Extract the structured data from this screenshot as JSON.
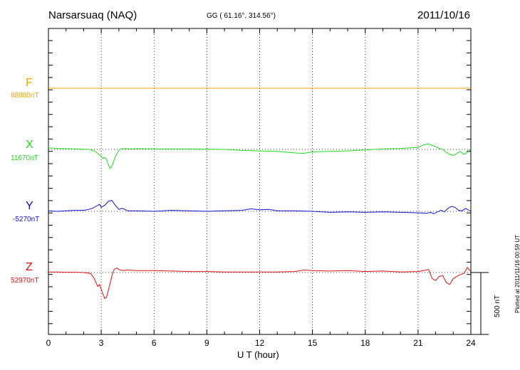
{
  "header": {
    "station": "Narsarsuaq (NAQ)",
    "coords": "GG ( 61.16°, 314.56°)",
    "date": "2011/10/16"
  },
  "components": [
    {
      "name": "F",
      "baseline": "88880nT",
      "color": "#f5a300"
    },
    {
      "name": "X",
      "baseline": "11670nT",
      "color": "#22d822"
    },
    {
      "name": "Y",
      "baseline": "-5270nT",
      "color": "#1010cc"
    },
    {
      "name": "Z",
      "baseline": "52970nT",
      "color": "#e01010"
    }
  ],
  "scale_label": "500 nT",
  "plotted_note": "Plotted at 2011/11/16 00:59 UT",
  "chart_data": {
    "type": "line",
    "title": "Narsarsuaq (NAQ)",
    "xlabel": "U T (hour)",
    "ylabel": "",
    "xlim": [
      0,
      24
    ],
    "xticks": [
      "0",
      "3",
      "6",
      "9",
      "12",
      "15",
      "18",
      "21",
      "24"
    ],
    "scale_nT": 500,
    "grid": "dotted vertical at 3-hour intervals, dotted horizontal baselines",
    "series": [
      {
        "name": "F",
        "baseline_nT": 88880,
        "color": "#f5a300",
        "x": [
          0,
          24
        ],
        "y": [
          0,
          0
        ]
      },
      {
        "name": "X",
        "baseline_nT": 11670,
        "color": "#22d822",
        "x": [
          0,
          0.3,
          0.6,
          1,
          1.5,
          2,
          2.3,
          2.6,
          2.8,
          3.0,
          3.1,
          3.2,
          3.3,
          3.4,
          3.5,
          3.6,
          3.7,
          3.8,
          3.9,
          4.0,
          4.1,
          4.3,
          4.6,
          5,
          6,
          7,
          8,
          9,
          10,
          11,
          12,
          13,
          14,
          14.5,
          15,
          16,
          17,
          18,
          19,
          20,
          21,
          21.3,
          21.6,
          21.8,
          22.0,
          22.2,
          22.4,
          22.6,
          22.8,
          23.0,
          23.2,
          23.4,
          23.6,
          23.8,
          24
        ],
        "y": [
          15,
          12,
          10,
          8,
          5,
          3,
          0,
          -15,
          -40,
          -70,
          -90,
          -80,
          -100,
          -150,
          -190,
          -170,
          -120,
          -70,
          -40,
          -10,
          5,
          8,
          5,
          8,
          5,
          6,
          5,
          3,
          0,
          -10,
          -15,
          -20,
          -35,
          -40,
          -25,
          -20,
          -15,
          -5,
          5,
          10,
          20,
          45,
          55,
          40,
          30,
          10,
          0,
          -30,
          -50,
          -60,
          -40,
          -20,
          -50,
          -30,
          10
        ]
      },
      {
        "name": "Y",
        "baseline_nT": -5270,
        "color": "#1010cc",
        "x": [
          0,
          0.5,
          1,
          1.5,
          2,
          2.3,
          2.5,
          2.7,
          2.9,
          3.0,
          3.2,
          3.4,
          3.6,
          3.8,
          4.0,
          4.2,
          4.5,
          5,
          6,
          7,
          8,
          9,
          10,
          11,
          11.5,
          12,
          12.5,
          13,
          14,
          15,
          16,
          17,
          18,
          19,
          20,
          21,
          21.5,
          21.7,
          21.9,
          22.1,
          22.3,
          22.5,
          22.7,
          22.9,
          23.1,
          23.3,
          23.5,
          23.7,
          24
        ],
        "y": [
          5,
          0,
          5,
          10,
          10,
          20,
          30,
          50,
          70,
          40,
          60,
          100,
          110,
          60,
          20,
          30,
          5,
          5,
          0,
          10,
          5,
          0,
          5,
          10,
          25,
          15,
          20,
          5,
          5,
          0,
          -10,
          -5,
          -10,
          -5,
          -10,
          -15,
          -20,
          -10,
          -25,
          -5,
          10,
          -5,
          30,
          50,
          40,
          10,
          5,
          30,
          0
        ]
      },
      {
        "name": "Z",
        "baseline_nT": 52970,
        "color": "#e01010",
        "x": [
          0,
          0.5,
          1,
          1.5,
          2,
          2.4,
          2.6,
          2.8,
          2.9,
          3.0,
          3.1,
          3.2,
          3.3,
          3.4,
          3.5,
          3.6,
          3.7,
          3.8,
          3.9,
          4.0,
          4.2,
          4.5,
          5,
          6,
          7,
          8,
          9,
          10,
          11,
          12,
          13,
          14,
          14.5,
          15,
          16,
          17,
          18,
          19,
          20,
          21,
          21.3,
          21.6,
          21.8,
          22.0,
          22.2,
          22.4,
          22.6,
          22.8,
          23.0,
          23.2,
          23.4,
          23.6,
          23.8,
          24
        ],
        "y": [
          5,
          5,
          3,
          3,
          0,
          -10,
          -60,
          -140,
          -120,
          -170,
          -220,
          -260,
          -250,
          -180,
          -110,
          -40,
          20,
          40,
          45,
          30,
          20,
          25,
          20,
          20,
          15,
          10,
          10,
          5,
          5,
          5,
          5,
          10,
          25,
          20,
          15,
          20,
          10,
          15,
          5,
          10,
          20,
          30,
          -60,
          -80,
          -40,
          -30,
          -100,
          -120,
          -60,
          -40,
          -20,
          -10,
          50,
          10
        ]
      }
    ]
  }
}
